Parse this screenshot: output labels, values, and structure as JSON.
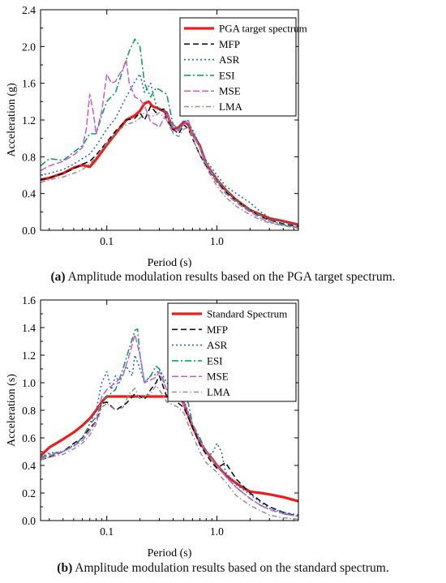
{
  "chart_data": [
    {
      "type": "line",
      "xlabel": "Period (s)",
      "ylabel": "Acceleration (g)",
      "x_scale": "log",
      "xlim": [
        0.025,
        5.5
      ],
      "ylim": [
        0,
        2.4
      ],
      "x_ticks": [
        0.1,
        1.0
      ],
      "x_tick_labels": [
        "0.1",
        "1.0"
      ],
      "y_ticks": [
        0.0,
        0.4,
        0.8,
        1.2,
        1.6,
        2.0,
        2.4
      ],
      "y_tick_labels": [
        "0.0",
        "0.4",
        "0.8",
        "1.2",
        "1.6",
        "2.0",
        "2.4"
      ],
      "legend_position": "top-right",
      "series": [
        {
          "name": "PGA target spectrum",
          "color": "#ee1c1c",
          "dash": "",
          "width": 3.2,
          "x": [
            0.025,
            0.03,
            0.04,
            0.05,
            0.06,
            0.07,
            0.08,
            0.1,
            0.12,
            0.15,
            0.18,
            0.2,
            0.22,
            0.24,
            0.26,
            0.3,
            0.35,
            0.4,
            0.45,
            0.5,
            0.55,
            0.6,
            0.7,
            0.8,
            1.0,
            1.2,
            1.5,
            2.0,
            2.5,
            3.0,
            4.0,
            5.5
          ],
          "y": [
            0.55,
            0.57,
            0.62,
            0.68,
            0.71,
            0.69,
            0.77,
            0.93,
            1.05,
            1.2,
            1.25,
            1.3,
            1.38,
            1.4,
            1.35,
            1.32,
            1.28,
            1.1,
            1.12,
            1.18,
            1.15,
            1.05,
            0.92,
            0.72,
            0.55,
            0.44,
            0.33,
            0.22,
            0.17,
            0.13,
            0.1,
            0.06
          ]
        },
        {
          "name": "MFP",
          "color": "#111111",
          "dash": "7,4",
          "width": 1.6,
          "x": [
            0.025,
            0.03,
            0.04,
            0.05,
            0.06,
            0.07,
            0.08,
            0.1,
            0.12,
            0.15,
            0.18,
            0.2,
            0.22,
            0.25,
            0.28,
            0.3,
            0.33,
            0.35,
            0.4,
            0.45,
            0.5,
            0.55,
            0.6,
            0.7,
            0.8,
            1.0,
            1.2,
            1.5,
            2.0,
            2.5,
            3.0,
            4.0,
            5.5
          ],
          "y": [
            0.55,
            0.57,
            0.62,
            0.67,
            0.72,
            0.75,
            0.82,
            0.96,
            1.08,
            1.2,
            1.22,
            1.28,
            1.2,
            1.35,
            1.28,
            1.31,
            1.32,
            1.2,
            1.1,
            1.05,
            1.15,
            1.1,
            1.0,
            0.82,
            0.7,
            0.52,
            0.42,
            0.32,
            0.22,
            0.15,
            0.11,
            0.07,
            0.04
          ]
        },
        {
          "name": "ASR",
          "color": "#1f6fd1",
          "dash": "2,3",
          "width": 1.6,
          "x": [
            0.025,
            0.03,
            0.04,
            0.05,
            0.06,
            0.07,
            0.08,
            0.1,
            0.12,
            0.15,
            0.18,
            0.2,
            0.22,
            0.25,
            0.28,
            0.3,
            0.35,
            0.4,
            0.45,
            0.5,
            0.55,
            0.6,
            0.7,
            0.8,
            1.0,
            1.2,
            1.5,
            2.0,
            2.5,
            3.0,
            4.0,
            5.5
          ],
          "y": [
            0.6,
            0.62,
            0.66,
            0.72,
            0.78,
            0.83,
            0.92,
            1.1,
            1.22,
            1.45,
            1.62,
            1.7,
            1.5,
            1.6,
            1.36,
            1.32,
            1.3,
            1.06,
            1.1,
            1.2,
            1.16,
            1.1,
            0.92,
            0.76,
            0.6,
            0.48,
            0.4,
            0.3,
            0.2,
            0.14,
            0.09,
            0.05
          ]
        },
        {
          "name": "ESI",
          "color": "#14a05a",
          "dash": "8,3,2,3",
          "width": 1.6,
          "x": [
            0.025,
            0.03,
            0.04,
            0.05,
            0.06,
            0.07,
            0.08,
            0.09,
            0.1,
            0.12,
            0.14,
            0.16,
            0.18,
            0.2,
            0.22,
            0.25,
            0.28,
            0.3,
            0.35,
            0.4,
            0.45,
            0.5,
            0.55,
            0.6,
            0.7,
            0.8,
            1.0,
            1.2,
            1.5,
            2.0,
            2.5,
            3.0,
            4.0,
            5.5
          ],
          "y": [
            0.7,
            0.78,
            0.76,
            0.85,
            0.92,
            1.05,
            1.05,
            1.25,
            1.4,
            1.5,
            1.75,
            1.95,
            2.08,
            2.0,
            1.6,
            1.45,
            1.55,
            1.53,
            1.48,
            1.15,
            1.1,
            1.15,
            1.2,
            1.05,
            0.9,
            0.72,
            0.55,
            0.44,
            0.32,
            0.22,
            0.16,
            0.11,
            0.06,
            0.03
          ]
        },
        {
          "name": "MSE",
          "color": "#c85ad8",
          "dash": "8,3",
          "width": 1.5,
          "x": [
            0.025,
            0.03,
            0.04,
            0.05,
            0.06,
            0.065,
            0.07,
            0.075,
            0.08,
            0.09,
            0.1,
            0.11,
            0.12,
            0.13,
            0.14,
            0.15,
            0.16,
            0.18,
            0.2,
            0.22,
            0.25,
            0.28,
            0.3,
            0.35,
            0.4,
            0.45,
            0.5,
            0.55,
            0.6,
            0.7,
            0.8,
            1.0,
            1.2,
            1.5,
            2.0,
            2.5,
            3.0,
            4.0,
            5.5
          ],
          "y": [
            0.65,
            0.7,
            0.75,
            0.82,
            0.9,
            1.1,
            1.48,
            1.3,
            1.05,
            1.3,
            1.7,
            1.6,
            1.62,
            1.7,
            1.75,
            1.85,
            1.6,
            1.45,
            1.42,
            1.36,
            1.18,
            1.15,
            1.12,
            1.28,
            1.12,
            1.08,
            1.15,
            1.2,
            1.05,
            0.9,
            0.72,
            0.52,
            0.4,
            0.3,
            0.2,
            0.13,
            0.09,
            0.05,
            0.03
          ]
        },
        {
          "name": "LMA",
          "color": "#909090",
          "dash": "6,3,1.5,3",
          "width": 1.5,
          "x": [
            0.025,
            0.03,
            0.04,
            0.05,
            0.06,
            0.07,
            0.08,
            0.1,
            0.12,
            0.15,
            0.18,
            0.2,
            0.22,
            0.25,
            0.28,
            0.3,
            0.35,
            0.4,
            0.45,
            0.5,
            0.55,
            0.6,
            0.7,
            0.8,
            1.0,
            1.2,
            1.5,
            2.0,
            2.5,
            3.0,
            4.0,
            5.5
          ],
          "y": [
            0.52,
            0.55,
            0.58,
            0.62,
            0.66,
            0.72,
            0.8,
            0.95,
            1.06,
            1.15,
            1.18,
            1.22,
            1.28,
            1.24,
            1.25,
            1.28,
            1.2,
            1.05,
            1.02,
            1.1,
            1.12,
            1.0,
            0.82,
            0.68,
            0.48,
            0.36,
            0.26,
            0.17,
            0.11,
            0.08,
            0.05,
            0.02
          ]
        }
      ]
    },
    {
      "type": "line",
      "xlabel": "Period (s)",
      "ylabel": "Acceleration (s)",
      "x_scale": "log",
      "xlim": [
        0.025,
        5.5
      ],
      "ylim": [
        0,
        1.6
      ],
      "x_ticks": [
        0.1,
        1.0
      ],
      "x_tick_labels": [
        "0.1",
        "1.0"
      ],
      "y_ticks": [
        0.0,
        0.2,
        0.4,
        0.6,
        0.8,
        1.0,
        1.2,
        1.4,
        1.6
      ],
      "y_tick_labels": [
        "0.0",
        "0.2",
        "0.4",
        "0.6",
        "0.8",
        "1.0",
        "1.2",
        "1.4",
        "1.6"
      ],
      "legend_position": "top-right",
      "series": [
        {
          "name": "Standard Spectrum",
          "color": "#ee1c1c",
          "dash": "",
          "width": 3.2,
          "x": [
            0.025,
            0.03,
            0.04,
            0.05,
            0.06,
            0.07,
            0.08,
            0.09,
            0.1,
            0.2,
            0.3,
            0.4,
            0.45,
            0.5,
            0.6,
            0.7,
            0.8,
            0.9,
            1.0,
            1.2,
            1.5,
            1.8,
            2.0,
            2.5,
            3.0,
            4.0,
            5.5
          ],
          "y": [
            0.47,
            0.53,
            0.59,
            0.64,
            0.69,
            0.74,
            0.8,
            0.86,
            0.9,
            0.9,
            0.9,
            0.9,
            0.9,
            0.85,
            0.68,
            0.57,
            0.5,
            0.45,
            0.4,
            0.33,
            0.27,
            0.23,
            0.21,
            0.2,
            0.19,
            0.17,
            0.14
          ]
        },
        {
          "name": "MFP",
          "color": "#111111",
          "dash": "7,4",
          "width": 1.6,
          "x": [
            0.025,
            0.03,
            0.04,
            0.05,
            0.06,
            0.07,
            0.08,
            0.09,
            0.1,
            0.12,
            0.15,
            0.18,
            0.2,
            0.22,
            0.25,
            0.28,
            0.3,
            0.35,
            0.4,
            0.45,
            0.5,
            0.6,
            0.7,
            0.8,
            0.9,
            1.0,
            1.2,
            1.5,
            2.0,
            2.5,
            3.0,
            4.0,
            5.5
          ],
          "y": [
            0.44,
            0.46,
            0.5,
            0.56,
            0.6,
            0.67,
            0.72,
            0.85,
            0.86,
            0.8,
            0.85,
            0.92,
            0.9,
            0.88,
            0.95,
            1.0,
            1.05,
            0.9,
            0.88,
            0.85,
            0.82,
            0.68,
            0.55,
            0.48,
            0.42,
            0.38,
            0.42,
            0.3,
            0.2,
            0.14,
            0.1,
            0.06,
            0.03
          ]
        },
        {
          "name": "ASR",
          "color": "#1f6fd1",
          "dash": "2,3",
          "width": 1.6,
          "x": [
            0.025,
            0.03,
            0.04,
            0.05,
            0.06,
            0.07,
            0.08,
            0.09,
            0.1,
            0.11,
            0.12,
            0.13,
            0.15,
            0.17,
            0.18,
            0.2,
            0.22,
            0.25,
            0.28,
            0.3,
            0.35,
            0.4,
            0.45,
            0.5,
            0.6,
            0.7,
            0.8,
            0.9,
            1.0,
            1.1,
            1.2,
            1.5,
            2.0,
            2.5,
            3.0,
            4.0,
            5.5
          ],
          "y": [
            0.46,
            0.49,
            0.5,
            0.55,
            0.6,
            0.7,
            0.8,
            1.0,
            1.08,
            0.95,
            1.05,
            1.0,
            1.12,
            1.05,
            1.2,
            1.1,
            1.0,
            1.05,
            1.06,
            1.1,
            1.0,
            0.95,
            0.9,
            0.88,
            0.7,
            0.58,
            0.5,
            0.48,
            0.56,
            0.5,
            0.35,
            0.26,
            0.19,
            0.13,
            0.09,
            0.06,
            0.04
          ]
        },
        {
          "name": "ESI",
          "color": "#14a05a",
          "dash": "8,3,2,3",
          "width": 1.6,
          "x": [
            0.025,
            0.03,
            0.04,
            0.05,
            0.06,
            0.07,
            0.08,
            0.09,
            0.1,
            0.12,
            0.14,
            0.16,
            0.18,
            0.19,
            0.2,
            0.22,
            0.25,
            0.28,
            0.3,
            0.35,
            0.4,
            0.45,
            0.5,
            0.55,
            0.6,
            0.7,
            0.8,
            1.0,
            1.2,
            1.5,
            2.0,
            2.5,
            3.0,
            4.0,
            5.5
          ],
          "y": [
            0.46,
            0.48,
            0.5,
            0.54,
            0.6,
            0.7,
            0.75,
            0.85,
            0.9,
            0.95,
            1.1,
            1.25,
            1.38,
            1.39,
            1.2,
            1.0,
            1.05,
            1.12,
            1.1,
            0.95,
            0.95,
            0.93,
            0.92,
            0.85,
            0.7,
            0.6,
            0.5,
            0.4,
            0.32,
            0.24,
            0.16,
            0.11,
            0.08,
            0.05,
            0.03
          ]
        },
        {
          "name": "MSE",
          "color": "#c85ad8",
          "dash": "8,3",
          "width": 1.5,
          "x": [
            0.025,
            0.03,
            0.04,
            0.05,
            0.06,
            0.07,
            0.08,
            0.09,
            0.1,
            0.12,
            0.14,
            0.16,
            0.18,
            0.2,
            0.22,
            0.25,
            0.28,
            0.3,
            0.35,
            0.4,
            0.45,
            0.5,
            0.6,
            0.7,
            0.8,
            1.0,
            1.2,
            1.5,
            2.0,
            2.5,
            3.0,
            4.0,
            5.5
          ],
          "y": [
            0.45,
            0.47,
            0.5,
            0.54,
            0.58,
            0.65,
            0.72,
            0.9,
            0.95,
            1.0,
            1.05,
            1.2,
            1.35,
            1.2,
            1.0,
            1.02,
            1.04,
            1.08,
            0.95,
            0.92,
            0.9,
            0.85,
            0.7,
            0.58,
            0.5,
            0.4,
            0.32,
            0.24,
            0.16,
            0.11,
            0.08,
            0.05,
            0.03
          ]
        },
        {
          "name": "LMA",
          "color": "#909090",
          "dash": "6,3,1.5,3",
          "width": 1.5,
          "x": [
            0.025,
            0.03,
            0.04,
            0.05,
            0.06,
            0.07,
            0.08,
            0.09,
            0.1,
            0.12,
            0.14,
            0.16,
            0.18,
            0.2,
            0.22,
            0.25,
            0.28,
            0.3,
            0.35,
            0.4,
            0.45,
            0.5,
            0.6,
            0.7,
            0.8,
            1.0,
            1.2,
            1.5,
            2.0,
            2.5,
            3.0,
            4.0,
            5.5
          ],
          "y": [
            0.44,
            0.46,
            0.48,
            0.52,
            0.56,
            0.62,
            0.7,
            0.82,
            0.85,
            0.8,
            0.82,
            0.92,
            0.96,
            0.88,
            0.9,
            0.92,
            0.98,
            0.95,
            0.86,
            0.84,
            0.82,
            0.78,
            0.62,
            0.5,
            0.42,
            0.35,
            0.28,
            0.18,
            0.11,
            0.07,
            0.04,
            0.02,
            0.01
          ]
        }
      ]
    }
  ],
  "captions": {
    "a_letter": "(a)",
    "a_text": " Amplitude modulation results based on the PGA target spectrum.",
    "b_letter": "(b)",
    "b_text": " Amplitude modulation results based on the standard spectrum."
  }
}
